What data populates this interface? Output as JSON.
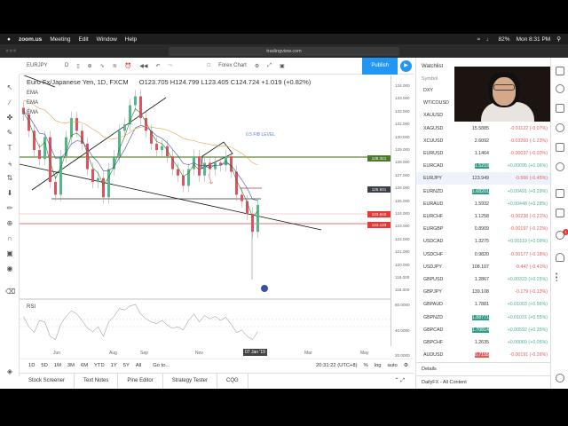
{
  "menubar": {
    "app": "zoom.us",
    "items": [
      "Meeting",
      "Edit",
      "Window",
      "Help"
    ],
    "battery": "82%",
    "clock": "Mon 8:31 PM"
  },
  "browser": {
    "url": "tradingview.com"
  },
  "toolbar": {
    "symbol": "EURJPY",
    "interval": "D",
    "chart_name": "Forex Chart",
    "publish": "Publish"
  },
  "chart": {
    "legend": "Euro Fx/Japanese Yen, 1D, FXCM",
    "ohlc": "O123.705  H124.799  L123.405  C124.724  +1.019 (+0.82%)",
    "indicators": [
      "EMA",
      "EMA",
      "EMA"
    ],
    "rsi_label": "RSI",
    "fib_label": "0.5 FIB LEVEL",
    "price_ticks": [
      "134.000",
      "133.000",
      "132.000",
      "131.000",
      "130.000",
      "129.000",
      "128.000",
      "127.000",
      "126.000",
      "125.000",
      "124.000",
      "123.000",
      "122.000",
      "121.000",
      "120.000",
      "119.000",
      "118.000"
    ],
    "rsi_ticks": [
      "60.0000",
      "40.0000",
      "20.0000"
    ],
    "price_labels": [
      {
        "text": "128.321",
        "value": 128.321,
        "color": "#4a7a2a"
      },
      {
        "text": "125.931",
        "value": 125.931,
        "color": "#3a3d4a"
      },
      {
        "text": "123.940",
        "value": 123.94,
        "color": "#e53935"
      },
      {
        "text": "123.133",
        "value": 123.133,
        "color": "#e53935"
      }
    ],
    "time_ticks": [
      "Jun",
      "Aug",
      "Sep",
      "Nov",
      "Mar",
      "May"
    ],
    "crosshair_date": "07 Jan '19",
    "closes": [
      131.8,
      130.5,
      129,
      128.3,
      130,
      126.5,
      125.5,
      128.5,
      130,
      131.5,
      130.5,
      129.5,
      127.5,
      126.5,
      126.8,
      125.3,
      127.5,
      128.5,
      130.5,
      131,
      132.5,
      133.2,
      131.5,
      130.5,
      129.5,
      129,
      129.3,
      128.5,
      127.5,
      127,
      126.2,
      127.5,
      128.5,
      127,
      128,
      127.5,
      128,
      127.8,
      128.5,
      127.3,
      125.5,
      125,
      124,
      122.6,
      124.7
    ],
    "rsi": [
      55,
      42,
      35,
      50,
      48,
      30,
      26,
      45,
      55,
      62,
      58,
      50,
      40,
      36,
      42,
      30,
      48,
      55,
      65,
      63,
      68,
      70,
      58,
      52,
      48,
      46,
      50,
      44,
      40,
      42,
      38,
      50,
      58,
      48,
      56,
      52,
      55,
      50,
      54,
      45,
      35,
      38,
      30,
      26,
      36
    ],
    "colors": {
      "up": "#53b987",
      "down": "#eb4d5c"
    }
  },
  "range": {
    "buttons": [
      "1D",
      "5D",
      "1M",
      "3M",
      "6M",
      "YTD",
      "1Y",
      "5Y",
      "All"
    ],
    "goto": "Go to...",
    "time": "20:31:22 (UTC+8)",
    "pct": "%",
    "log": "log",
    "auto": "auto"
  },
  "bottom_tabs": [
    "Stock Screener",
    "Text Notes",
    "Pine Editor",
    "Strategy Tester",
    "CQG"
  ],
  "watchlist": {
    "title": "Watchlist",
    "symbol_header": "Symbol",
    "rows": [
      {
        "sym": "DXY",
        "last": "",
        "chg": ""
      },
      {
        "sym": "WTICOUSD",
        "last": "",
        "chg": ""
      },
      {
        "sym": "XAUUSD",
        "last": "",
        "chg": ""
      },
      {
        "sym": "XAGUSD",
        "last": "15.5885",
        "chg": "-0.01122 (-0.07%)",
        "dir": "down"
      },
      {
        "sym": "XCUUSD",
        "last": "2.6092",
        "chg": "-0.03260 (-1.23%)",
        "dir": "down"
      },
      {
        "sym": "EURUSD",
        "last": "1.1464",
        "chg": "-0.00037 (-0.03%)",
        "dir": "down"
      },
      {
        "sym": "EURCAD",
        "last": "1.5219",
        "chg": "+0.00095 (+0.06%)",
        "dir": "up",
        "flash": "up"
      },
      {
        "sym": "EURJPY",
        "last": "123.949",
        "chg": "-0.566 (-0.45%)",
        "dir": "down",
        "selected": true
      },
      {
        "sym": "EURNZD",
        "last": "1.68201",
        "chg": "+0.00491 (+0.29%)",
        "dir": "up",
        "flash": "up"
      },
      {
        "sym": "EURAUD",
        "last": "1.5932",
        "chg": "+0.00448 (+0.28%)",
        "dir": "up"
      },
      {
        "sym": "EURCHF",
        "last": "1.1258",
        "chg": "-0.00238 (-0.21%)",
        "dir": "down"
      },
      {
        "sym": "EURGBP",
        "last": "0.8909",
        "chg": "-0.00197 (-0.22%)",
        "dir": "down"
      },
      {
        "sym": "USDCAD",
        "last": "1.3275",
        "chg": "+0.00119 (+0.09%)",
        "dir": "up"
      },
      {
        "sym": "USDCHF",
        "last": "0.9820",
        "chg": "-0.00177 (-0.18%)",
        "dir": "down"
      },
      {
        "sym": "USDJPY",
        "last": "108.107",
        "chg": "-0.447 (-0.41%)",
        "dir": "down"
      },
      {
        "sym": "GBPUSD",
        "last": "1.2867",
        "chg": "+0.00323 (+0.25%)",
        "dir": "up"
      },
      {
        "sym": "GBPJPY",
        "last": "139.108",
        "chg": "-0.179 (-0.13%)",
        "dir": "down"
      },
      {
        "sym": "GBPAUD",
        "last": "1.7881",
        "chg": "+0.01003 (+0.56%)",
        "dir": "up"
      },
      {
        "sym": "GBPNZD",
        "last": "1.88771",
        "chg": "+0.01031 (+0.55%)",
        "dir": "up",
        "flash": "up"
      },
      {
        "sym": "GBPCAD",
        "last": "1.70814",
        "chg": "+0.00592 (+0.35%)",
        "dir": "up",
        "flash": "up"
      },
      {
        "sym": "GBPCHF",
        "last": "1.2635",
        "chg": "+0.00060 (+0.05%)",
        "dir": "up"
      },
      {
        "sym": "AUDUSD",
        "last": "0.7155",
        "chg": "-0.00191 (-0.26%)",
        "dir": "down",
        "flash": "down"
      }
    ],
    "details": "Details",
    "news": "DailyFX - All Content"
  },
  "alerts_badge": "1"
}
